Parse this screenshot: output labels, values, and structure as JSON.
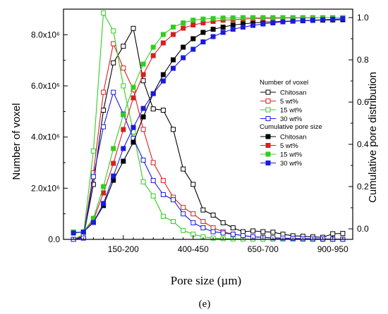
{
  "chart_data": {
    "type": "line",
    "xlabel": "Pore size (µm)",
    "ylabel_left": "Number of voxel",
    "ylabel_right": "Cumulative pore distribution",
    "caption": "(e)",
    "x_tick_labels": [
      "150-200",
      "400-450",
      "650-700",
      "900-950"
    ],
    "x_tick_positions": [
      6,
      13,
      20,
      27
    ],
    "y_left_ticks": [
      "0.0",
      "2.0x10⁶",
      "4.0x10⁶",
      "6.0x10⁶",
      "8.0x10⁶"
    ],
    "y_left_tick_values": [
      0,
      2000000,
      4000000,
      6000000,
      8000000
    ],
    "y_left_range": [
      0,
      9000000
    ],
    "y_right_ticks": [
      "0.0",
      "0.2",
      "0.4",
      "0.6",
      "0.8",
      "1.0"
    ],
    "y_right_tick_values": [
      0,
      0.2,
      0.4,
      0.6,
      0.8,
      1.0
    ],
    "y_right_range": [
      -0.05,
      1.04
    ],
    "x_range": [
      0,
      29
    ],
    "legend": {
      "group1_title": "Number of voxel",
      "group2_title": "Cumulative pore size",
      "placement": "right-middle"
    },
    "colors": {
      "Chitosan": "#000000",
      "5 wt%": "#d62020",
      "15 wt%": "#33cc22",
      "30 wt%": "#1a1ae0"
    },
    "voxel_series": [
      {
        "name": "Chitosan",
        "x": [
          1,
          2,
          3,
          4,
          5,
          6,
          7,
          8,
          9,
          10,
          11,
          12,
          13,
          14,
          15,
          16,
          17,
          18,
          19,
          20,
          21,
          22,
          23,
          24,
          25,
          26,
          27,
          28
        ],
        "values": [
          0,
          100000,
          2150000,
          5050000,
          6900000,
          7550000,
          8250000,
          6200000,
          5100000,
          5050000,
          4300000,
          2750000,
          2150000,
          1150000,
          950000,
          650000,
          450000,
          300000,
          330000,
          300000,
          280000,
          200000,
          140000,
          120000,
          100000,
          80000,
          220000,
          230000
        ]
      },
      {
        "name": "5 wt%",
        "x": [
          1,
          2,
          3,
          4,
          5,
          6,
          7,
          8,
          9,
          10,
          11,
          12,
          13,
          14,
          15,
          16,
          17,
          18,
          19,
          20,
          21,
          22,
          23,
          24,
          25,
          26,
          27,
          28
        ],
        "values": [
          0,
          150000,
          2600000,
          5750000,
          7650000,
          6700000,
          5850000,
          4300000,
          3000000,
          2300000,
          1650000,
          1250000,
          1000000,
          700000,
          450000,
          300000,
          200000,
          150000,
          100000,
          80000,
          50000,
          30000,
          20000,
          15000,
          10000,
          5000,
          3000,
          2000
        ]
      },
      {
        "name": "15 wt%",
        "x": [
          1,
          2,
          3,
          4,
          5,
          6,
          7,
          8,
          9,
          10,
          11,
          12,
          13,
          14,
          15,
          16,
          17,
          18,
          19,
          20,
          21,
          22,
          23,
          24,
          25,
          26,
          27,
          28
        ],
        "values": [
          0,
          200000,
          3450000,
          8850000,
          8150000,
          6000000,
          4200000,
          2250000,
          1700000,
          900000,
          700000,
          350000,
          200000,
          100000,
          50000,
          30000,
          20000,
          15000,
          10000,
          8000,
          6000,
          5000,
          4000,
          3000,
          2000,
          1500,
          1000,
          500
        ]
      },
      {
        "name": "30 wt%",
        "x": [
          1,
          2,
          3,
          4,
          5,
          6,
          7,
          8,
          9,
          10,
          11,
          12,
          13,
          14,
          15,
          16,
          17,
          18,
          19,
          20,
          21,
          22,
          23,
          24,
          25,
          26,
          27,
          28
        ],
        "values": [
          0,
          50000,
          2450000,
          4400000,
          5750000,
          4900000,
          3950000,
          3100000,
          2300000,
          1750000,
          1550000,
          1000000,
          650000,
          450000,
          300000,
          250000,
          200000,
          150000,
          100000,
          80000,
          60000,
          50000,
          40000,
          30000,
          25000,
          20000,
          10000,
          5000
        ]
      }
    ],
    "cumulative_series": [
      {
        "name": "Chitosan",
        "x": [
          1,
          2,
          3,
          4,
          5,
          6,
          7,
          8,
          9,
          10,
          11,
          12,
          13,
          14,
          15,
          16,
          17,
          18,
          19,
          20,
          21,
          22,
          23,
          24,
          25,
          26,
          27,
          28
        ],
        "values": [
          -0.015,
          -0.015,
          0.03,
          0.11,
          0.23,
          0.32,
          0.41,
          0.53,
          0.64,
          0.73,
          0.8,
          0.86,
          0.9,
          0.93,
          0.945,
          0.955,
          0.965,
          0.97,
          0.975,
          0.978,
          0.98,
          0.982,
          0.984,
          0.985,
          0.987,
          0.988,
          0.989,
          0.99
        ]
      },
      {
        "name": "5 wt%",
        "x": [
          1,
          2,
          3,
          4,
          5,
          6,
          7,
          8,
          9,
          10,
          11,
          12,
          13,
          14,
          15,
          16,
          17,
          18,
          19,
          20,
          21,
          22,
          23,
          24,
          25,
          26,
          27,
          28
        ],
        "values": [
          -0.015,
          -0.015,
          0.04,
          0.17,
          0.31,
          0.47,
          0.62,
          0.73,
          0.82,
          0.88,
          0.92,
          0.95,
          0.965,
          0.975,
          0.982,
          0.988,
          0.99,
          0.993,
          0.995,
          0.996,
          0.997,
          0.998,
          0.998,
          0.999,
          0.999,
          1.0,
          1.0,
          1.0
        ]
      },
      {
        "name": "15 wt%",
        "x": [
          1,
          2,
          3,
          4,
          5,
          6,
          7,
          8,
          9,
          10,
          11,
          12,
          13,
          14,
          15,
          16,
          17,
          18,
          19,
          20,
          21,
          22,
          23,
          24,
          25,
          26,
          27,
          28
        ],
        "values": [
          -0.015,
          -0.015,
          0.05,
          0.2,
          0.38,
          0.54,
          0.67,
          0.78,
          0.86,
          0.92,
          0.955,
          0.975,
          0.988,
          0.993,
          0.996,
          0.998,
          0.999,
          1.0,
          1.0,
          1.0,
          1.0,
          1.0,
          1.0,
          1.0,
          1.0,
          1.0,
          1.0,
          1.0
        ]
      },
      {
        "name": "30 wt%",
        "x": [
          1,
          2,
          3,
          4,
          5,
          6,
          7,
          8,
          9,
          10,
          11,
          12,
          13,
          14,
          15,
          16,
          17,
          18,
          19,
          20,
          21,
          22,
          23,
          24,
          25,
          26,
          27,
          28
        ],
        "values": [
          -0.02,
          -0.015,
          0.03,
          0.12,
          0.25,
          0.38,
          0.48,
          0.57,
          0.64,
          0.7,
          0.76,
          0.81,
          0.85,
          0.885,
          0.91,
          0.93,
          0.945,
          0.955,
          0.963,
          0.97,
          0.975,
          0.98,
          0.983,
          0.986,
          0.988,
          0.99,
          0.992,
          0.995
        ]
      }
    ]
  }
}
